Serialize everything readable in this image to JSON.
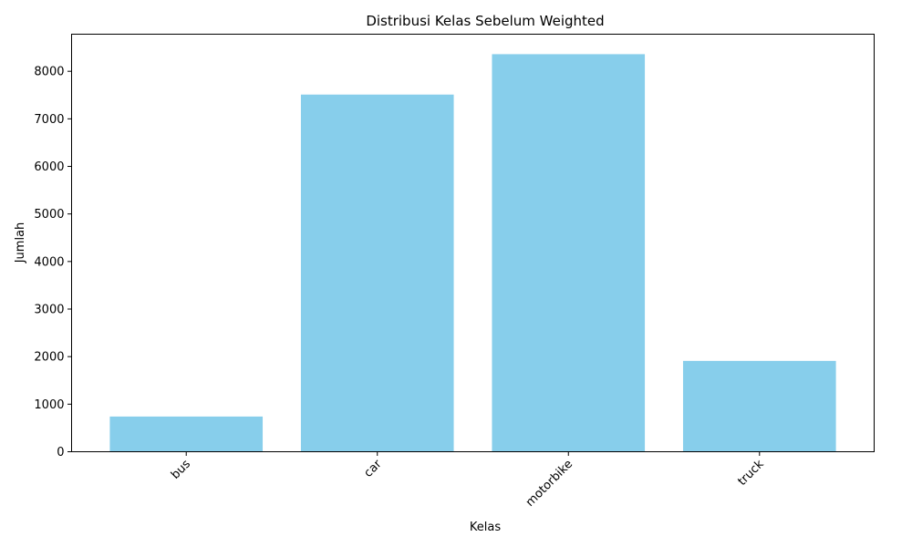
{
  "chart_data": {
    "type": "bar",
    "title": "Distribusi Kelas Sebelum Weighted",
    "xlabel": "Kelas",
    "ylabel": "Jumlah",
    "categories": [
      "bus",
      "car",
      "motorbike",
      "truck"
    ],
    "values": [
      740,
      7510,
      8360,
      1910
    ],
    "ylim": [
      0,
      8780
    ],
    "yticks": [
      0,
      1000,
      2000,
      3000,
      4000,
      5000,
      6000,
      7000,
      8000
    ],
    "bar_color": "#87CEEB",
    "grid": false,
    "legend": "none"
  }
}
